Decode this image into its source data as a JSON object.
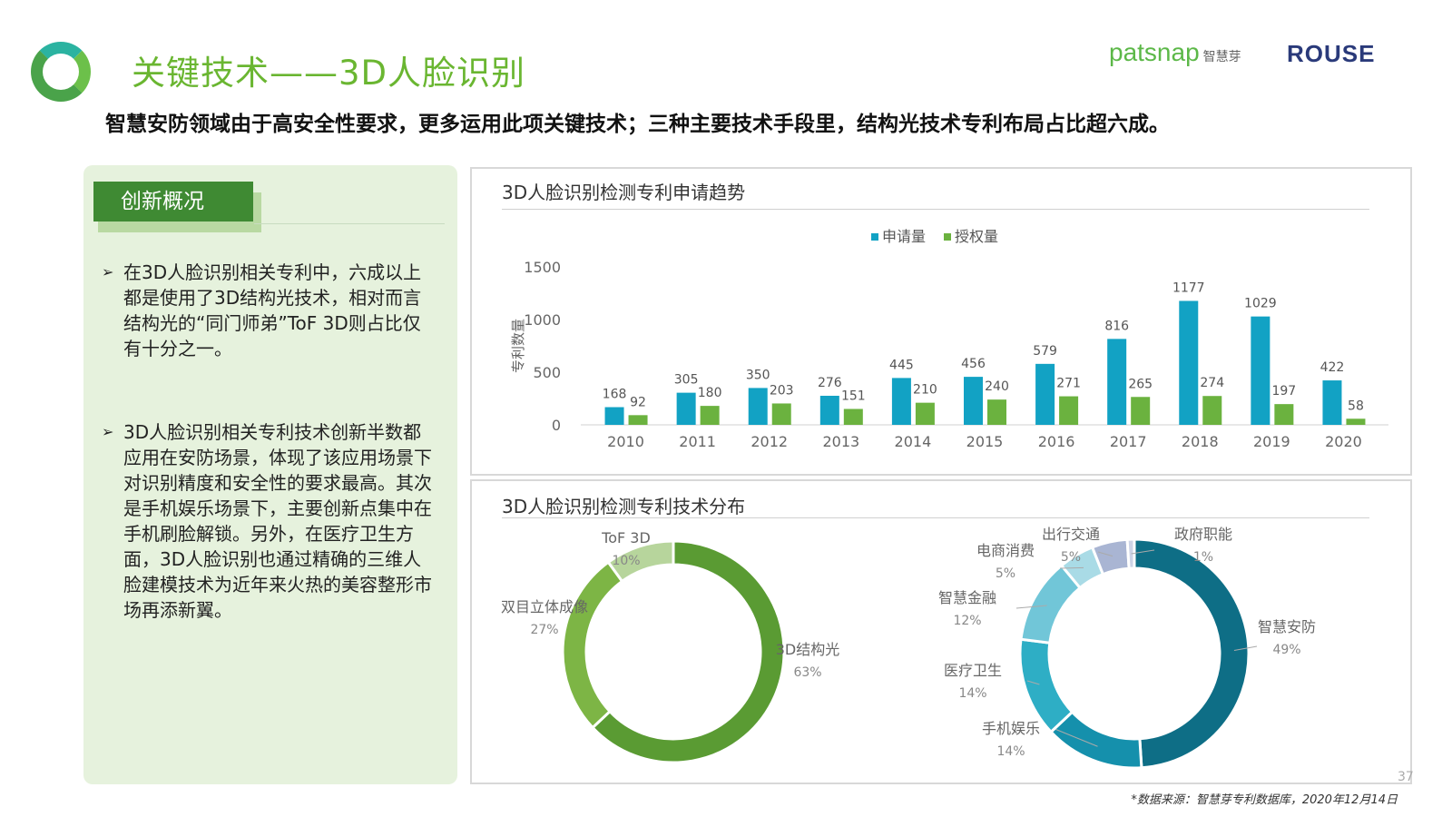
{
  "header": {
    "title": "关键技术——3D人脸识别",
    "subtitle": "智慧安防领域由于高安全性要求，更多运用此项关键技术；三种主要技术手段里，结构光技术专利布局占比超六成。",
    "brand_patsnap": "patsnap",
    "brand_patsnap_cn": "智慧芽",
    "brand_rouse": "ROUSE"
  },
  "left_panel": {
    "section_title": "创新概况",
    "bullets": [
      "在3D人脸识别相关专利中，六成以上都是使用了3D结构光技术，相对而言结构光的“同门师弟”ToF 3D则占比仅有十分之一。",
      "3D人脸识别相关专利技术创新半数都应用在安防场景，体现了该应用场景下对识别精度和安全性的要求最高。其次是手机娱乐场景下，主要创新点集中在手机刷脸解锁。另外，在医疗卫生方面，3D人脸识别也通过精确的三维人脸建模技术为近年来火热的美容整形市场再添新翼。"
    ]
  },
  "colors": {
    "apply": "#12a2c4",
    "grant": "#6bb23f",
    "donut_left": [
      "#5a9b33",
      "#7db545",
      "#b7d59c"
    ],
    "donut_right": [
      "#0e6e86",
      "#1590ac",
      "#2eaec5",
      "#71c6d8",
      "#a9dbe6",
      "#a9b5d3",
      "#ccd3e6"
    ]
  },
  "chart_data": [
    {
      "type": "bar",
      "title": "3D人脸识别检测专利申请趋势",
      "ylabel": "专利数量",
      "xlabel": "",
      "ylim": [
        0,
        1500
      ],
      "yticks": [
        0,
        500,
        1000,
        1500
      ],
      "categories": [
        "2010",
        "2011",
        "2012",
        "2013",
        "2014",
        "2015",
        "2016",
        "2017",
        "2018",
        "2019",
        "2020"
      ],
      "series": [
        {
          "name": "申请量",
          "values": [
            168,
            305,
            350,
            276,
            445,
            456,
            579,
            816,
            1177,
            1029,
            422
          ]
        },
        {
          "name": "授权量",
          "values": [
            92,
            180,
            203,
            151,
            210,
            240,
            271,
            265,
            274,
            197,
            58
          ]
        }
      ],
      "legend": "top-center"
    },
    {
      "type": "pie",
      "title": "3D人脸识别检测专利技术分布",
      "slices": [
        {
          "label": "3D结构光",
          "pct": "63%",
          "value": 63
        },
        {
          "label": "双目立体成像",
          "pct": "27%",
          "value": 27
        },
        {
          "label": "ToF 3D",
          "pct": "10%",
          "value": 10
        }
      ]
    },
    {
      "type": "pie",
      "slices": [
        {
          "label": "智慧安防",
          "pct": "49%",
          "value": 49
        },
        {
          "label": "手机娱乐",
          "pct": "14%",
          "value": 14
        },
        {
          "label": "医疗卫生",
          "pct": "14%",
          "value": 14
        },
        {
          "label": "智慧金融",
          "pct": "12%",
          "value": 12
        },
        {
          "label": "电商消费",
          "pct": "5%",
          "value": 5
        },
        {
          "label": "出行交通",
          "pct": "5%",
          "value": 5
        },
        {
          "label": "政府职能",
          "pct": "1%",
          "value": 1
        }
      ]
    }
  ],
  "footer": {
    "source": "*数据来源：智慧芽专利数据库，2020年12月14日",
    "page_number": "37"
  }
}
